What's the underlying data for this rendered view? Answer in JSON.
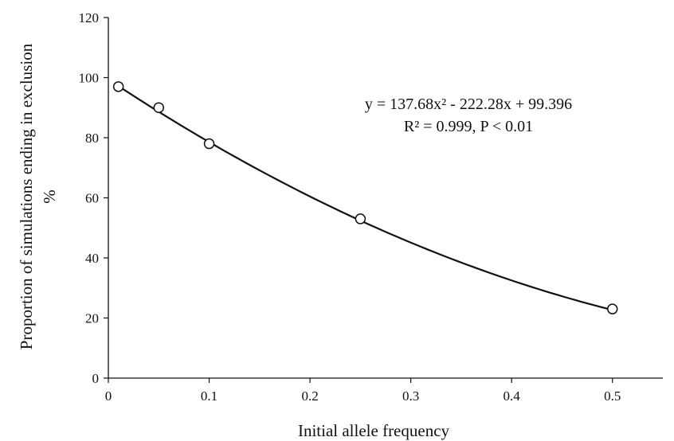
{
  "chart_data": {
    "type": "scatter",
    "title": "",
    "xlabel": "Initial allele frequency",
    "ylabel_line1": "Proportion of simulations ending in exclusion",
    "ylabel_line2": "%",
    "xlim": [
      0,
      0.55
    ],
    "ylim": [
      0,
      120
    ],
    "x_ticks": [
      0,
      0.1,
      0.2,
      0.3,
      0.4,
      0.5
    ],
    "x_tick_labels": [
      "0",
      "0.1",
      "0.2",
      "0.3",
      "0.4",
      "0.5"
    ],
    "y_ticks": [
      0,
      20,
      40,
      60,
      80,
      100,
      120
    ],
    "y_tick_labels": [
      "0",
      "20",
      "40",
      "60",
      "80",
      "100",
      "120"
    ],
    "grid": false,
    "legend": "none",
    "points": [
      {
        "x": 0.01,
        "y": 97
      },
      {
        "x": 0.05,
        "y": 90
      },
      {
        "x": 0.1,
        "y": 78
      },
      {
        "x": 0.25,
        "y": 53
      },
      {
        "x": 0.5,
        "y": 23
      }
    ],
    "trendline": {
      "type": "polynomial",
      "coefficients": [
        137.68,
        -222.28,
        99.396
      ],
      "x_range": [
        0.01,
        0.5
      ]
    },
    "annotations": [
      "y = 137.68x² - 222.28x + 99.396",
      "R² = 0.999, P < 0.01"
    ],
    "colors": {
      "marker": "#111111",
      "line": "#111111",
      "axis": "#111111"
    }
  }
}
